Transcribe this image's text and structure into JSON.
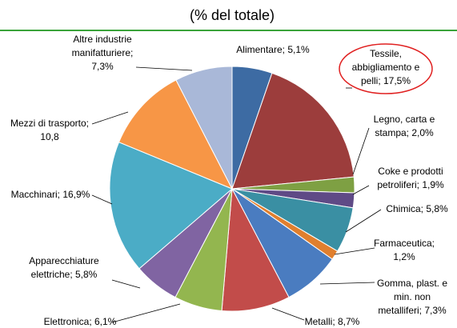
{
  "chart_data": {
    "type": "pie",
    "title": "(% del totale)",
    "values": [
      5.1,
      17.5,
      2.0,
      1.9,
      5.8,
      1.2,
      7.3,
      8.7,
      6.1,
      5.8,
      16.9,
      10.8,
      7.3
    ],
    "value_labels": [
      [
        "Alimentare; 5,1%"
      ],
      [
        "Tessile,",
        "abbigliamento e",
        "pelli; 17,5%"
      ],
      [
        "Legno, carta e",
        "stampa; 2,0%"
      ],
      [
        "Coke e prodotti",
        "petroliferi; 1,9%"
      ],
      [
        "Chimica; 5,8%"
      ],
      [
        "Farmaceutica;",
        "1,2%"
      ],
      [
        "Gomma, plast. e",
        "min. non",
        "metalliferi; 7,3%"
      ],
      [
        "Metalli; 8,7%"
      ],
      [
        "Elettronica; 6,1%"
      ],
      [
        "Apparecchiature",
        "elettriche; 5,8%"
      ],
      [
        "Macchinari; 16,9%"
      ],
      [
        "Mezzi di trasporto;",
        "10,8"
      ],
      [
        "Altre industrie",
        "manifatturiere;",
        "7,3%"
      ]
    ],
    "colors": [
      "#3d6ba3",
      "#9c3d3c",
      "#7ea043",
      "#5f4a86",
      "#3a8fa3",
      "#e07f2e",
      "#4a7cc0",
      "#c24c4a",
      "#93b64f",
      "#8064a2",
      "#4bacc6",
      "#f79646",
      "#a9b8d8"
    ]
  }
}
